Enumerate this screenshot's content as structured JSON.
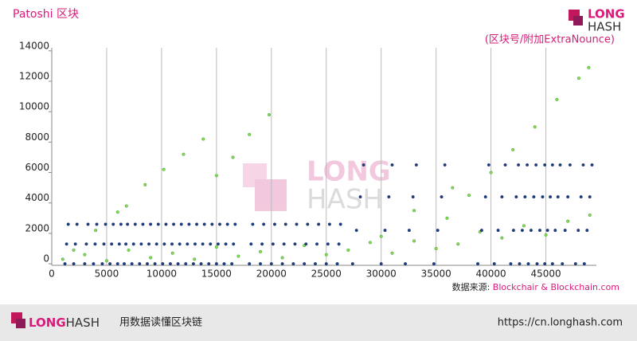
{
  "chart_data": {
    "type": "scatter",
    "title": "Patoshi 区块",
    "subtitle": "(区块号/附加ExtraNounce)",
    "source_prefix": "数据来源: ",
    "source": "Blockchair & Blockchain.com",
    "xlim": [
      0,
      49600
    ],
    "ylim": [
      -100,
      14200
    ],
    "xticks": [
      0,
      5000,
      10000,
      15000,
      20000,
      25000,
      30000,
      35000,
      40000,
      45000
    ],
    "yticks": [
      0,
      2000,
      4000,
      6000,
      8000,
      10000,
      12000,
      14000
    ],
    "grid": "x",
    "series": [
      {
        "color": "#2b8a1f",
        "fillcolor": "#86dc52",
        "x": [
          6800,
          8500,
          10200,
          12000,
          13800,
          15000,
          16500,
          18000,
          19800,
          2000,
          4000,
          6000,
          36000,
          38000,
          40000,
          42000,
          44000,
          46000,
          48000,
          48900,
          30000,
          33000,
          36500,
          1000,
          3000,
          5000,
          7000,
          9000,
          11000,
          13000,
          15000,
          17000,
          19000,
          21000,
          23000,
          25000,
          27000,
          29000,
          31000,
          33000,
          35000,
          37000,
          39000,
          41000,
          43000,
          45000,
          47000,
          49000
        ],
        "values": [
          3800,
          5200,
          6200,
          7200,
          8200,
          5800,
          7000,
          8500,
          9800,
          900,
          2200,
          3400,
          3000,
          4500,
          6000,
          7500,
          9000,
          10800,
          12200,
          12900,
          1800,
          3500,
          5000,
          300,
          600,
          200,
          900,
          400,
          700,
          300,
          1100,
          500,
          800,
          400,
          1200,
          600,
          900,
          1400,
          700,
          1500,
          1000,
          1300,
          2100,
          1700,
          2500,
          1900,
          2800,
          3200
        ]
      },
      {
        "color": "#1f3c7a",
        "fillcolor": "#1f3c7a",
        "x": [
          1200,
          1350,
          1500,
          2000,
          2150,
          2300,
          3000,
          3150,
          3300,
          3800,
          3950,
          4100,
          4600,
          4750,
          4900,
          5300,
          5450,
          5600,
          6000,
          6150,
          6300,
          6600,
          6750,
          6900,
          7300,
          7450,
          7600,
          8000,
          8150,
          8300,
          8700,
          8850,
          9000,
          9400,
          9550,
          9700,
          10100,
          10250,
          10400,
          10800,
          10950,
          11100,
          11500,
          11650,
          11800,
          12200,
          12350,
          12500,
          12900,
          13050,
          13200,
          13600,
          13750,
          13900,
          14300,
          14450,
          14600,
          15000,
          15150,
          15300,
          15700,
          15850,
          16000,
          16400,
          16550,
          16700,
          18000,
          18150,
          18300,
          19000,
          19150,
          19300,
          20000,
          20150,
          20300,
          21000,
          21150,
          21300,
          22000,
          22150,
          22300,
          23000,
          23150,
          23300,
          24000,
          24150,
          24300,
          25000,
          25150,
          25300,
          26000,
          26150,
          26300,
          27400,
          27750,
          28100,
          28400,
          30000,
          30350,
          30700,
          31000,
          32200,
          32550,
          32900,
          33200,
          34800,
          35150,
          35500,
          35800,
          38800,
          39150,
          39500,
          39800,
          40300,
          40650,
          41000,
          41300,
          41800,
          42050,
          42300,
          42500,
          42600,
          42850,
          43100,
          43300,
          43400,
          43650,
          43900,
          44100,
          44200,
          44450,
          44700,
          44900,
          44900,
          45150,
          45400,
          45600,
          45600,
          45850,
          46100,
          46300,
          46500,
          46750,
          47000,
          47200,
          47700,
          47950,
          48200,
          48400,
          48500,
          48750,
          49000,
          49200
        ],
        "values": [
          0,
          1300,
          2600,
          0,
          1300,
          2600,
          0,
          1300,
          2600,
          0,
          1300,
          2600,
          0,
          1300,
          2600,
          0,
          1300,
          2600,
          0,
          1300,
          2600,
          0,
          1300,
          2600,
          0,
          1300,
          2600,
          0,
          1300,
          2600,
          0,
          1300,
          2600,
          0,
          1300,
          2600,
          0,
          1300,
          2600,
          0,
          1300,
          2600,
          0,
          1300,
          2600,
          0,
          1300,
          2600,
          0,
          1300,
          2600,
          0,
          1300,
          2600,
          0,
          1300,
          2600,
          0,
          1300,
          2600,
          0,
          1300,
          2600,
          0,
          1300,
          2600,
          0,
          1300,
          2600,
          0,
          1300,
          2600,
          0,
          1300,
          2600,
          0,
          1300,
          2600,
          0,
          1300,
          2600,
          0,
          1300,
          2600,
          0,
          1300,
          2600,
          0,
          1300,
          2600,
          0,
          1300,
          2600,
          0,
          2200,
          4400,
          6500,
          0,
          2200,
          4400,
          6500,
          0,
          2200,
          4400,
          6500,
          0,
          2200,
          4400,
          6500,
          0,
          2200,
          4400,
          6500,
          0,
          2200,
          4400,
          6500,
          0,
          2200,
          4400,
          6500,
          0,
          2200,
          4400,
          6500,
          0,
          2200,
          4400,
          6500,
          0,
          2200,
          4400,
          6500,
          0,
          2200,
          4400,
          6500,
          0,
          2200,
          4400,
          6500,
          0,
          2200,
          4400,
          6500,
          0,
          2200,
          4400,
          6500,
          0,
          2200,
          4400,
          6500
        ]
      }
    ]
  },
  "brand": {
    "long": "LONG",
    "hash": "HASH",
    "slogan": "用数据读懂区块链",
    "url": "https://cn.longhash.com"
  }
}
